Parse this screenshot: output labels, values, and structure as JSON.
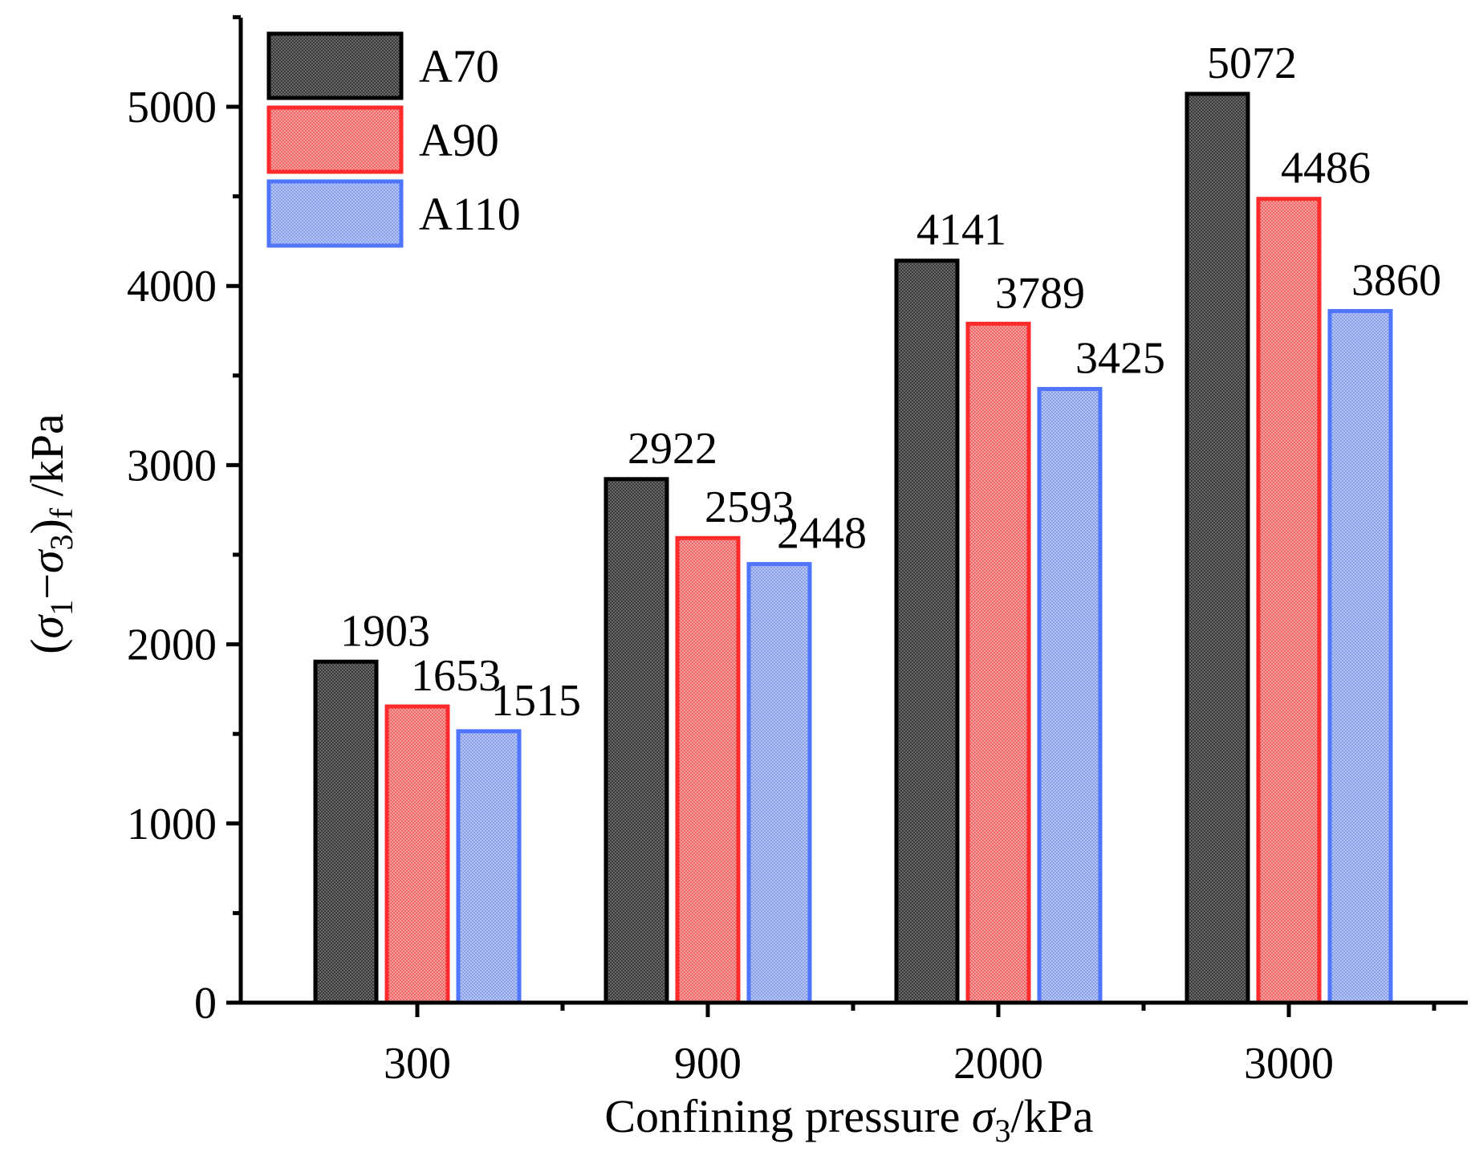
{
  "chart_data": {
    "type": "bar",
    "categories": [
      "300",
      "900",
      "2000",
      "3000"
    ],
    "series": [
      {
        "name": "A70",
        "values": [
          1903,
          2922,
          4141,
          5072
        ],
        "fill": "#4a4a4a",
        "stroke": "#000000"
      },
      {
        "name": "A90",
        "values": [
          1653,
          2593,
          3789,
          4486
        ],
        "fill": "#f07070",
        "stroke": "#ff2a2a"
      },
      {
        "name": "A110",
        "values": [
          1515,
          2448,
          3425,
          3860
        ],
        "fill": "#93a8ee",
        "stroke": "#4f75ff"
      }
    ],
    "yticks": [
      "0",
      "1000",
      "2000",
      "3000",
      "4000",
      "5000"
    ],
    "ylim": [
      0,
      5500
    ],
    "xlabel": {
      "prefix": "Confining pressure ",
      "sym": "σ",
      "sub": "3",
      "suffix": "/kPa"
    },
    "ylabel": {
      "open": "(",
      "sym1": "σ",
      "sub1": "1",
      "minus": "−",
      "sym2": "σ",
      "sub2": "3",
      "close": ")",
      "subf": "f",
      "suffix": " /kPa"
    },
    "legend_position": "top-left"
  }
}
